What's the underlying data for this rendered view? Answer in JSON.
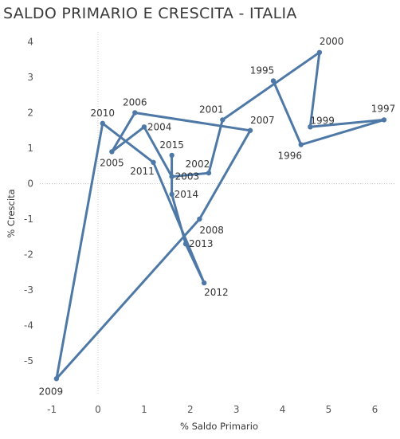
{
  "title": "SALDO PRIMARIO E CRESCITA - ITALIA",
  "chart_data": {
    "type": "line",
    "subtype": "connected-scatter",
    "title": "SALDO PRIMARIO E CRESCITA - ITALIA",
    "xlabel": "% Saldo Primario",
    "ylabel": "% Crescita",
    "xlim": [
      -1.1,
      6.3
    ],
    "ylim": [
      -5.8,
      4.3
    ],
    "x_ticks": [
      -1,
      0,
      1,
      2,
      3,
      4,
      5,
      6
    ],
    "y_ticks": [
      4,
      3,
      2,
      1,
      0,
      -1,
      -2,
      -3,
      -4,
      -5
    ],
    "grid": false,
    "zero_lines": true,
    "line_color": "#4e79a7",
    "series": [
      {
        "points": [
          {
            "label": "1995",
            "x": 3.8,
            "y": 2.9
          },
          {
            "label": "1996",
            "x": 4.4,
            "y": 1.1
          },
          {
            "label": "1997",
            "x": 6.2,
            "y": 1.8
          },
          {
            "label": "1999",
            "x": 4.6,
            "y": 1.6
          },
          {
            "label": "2000",
            "x": 4.8,
            "y": 3.7
          },
          {
            "label": "2001",
            "x": 2.7,
            "y": 1.8
          },
          {
            "label": "2002",
            "x": 2.4,
            "y": 0.3
          },
          {
            "label": "2003",
            "x": 1.6,
            "y": 0.2
          },
          {
            "label": "2004",
            "x": 1.0,
            "y": 1.6
          },
          {
            "label": "2005",
            "x": 0.3,
            "y": 0.9
          },
          {
            "label": "2006",
            "x": 0.8,
            "y": 2.0
          },
          {
            "label": "2007",
            "x": 3.3,
            "y": 1.5
          },
          {
            "label": "2008",
            "x": 2.2,
            "y": -1.0
          },
          {
            "label": "2009",
            "x": -0.9,
            "y": -5.5
          },
          {
            "label": "2010",
            "x": 0.1,
            "y": 1.7
          },
          {
            "label": "2011",
            "x": 1.2,
            "y": 0.6
          },
          {
            "label": "2012",
            "x": 2.3,
            "y": -2.8
          },
          {
            "label": "2013",
            "x": 1.9,
            "y": -1.7
          },
          {
            "label": "2014",
            "x": 1.6,
            "y": -0.3
          },
          {
            "label": "2015",
            "x": 1.6,
            "y": 0.8
          }
        ]
      }
    ]
  }
}
